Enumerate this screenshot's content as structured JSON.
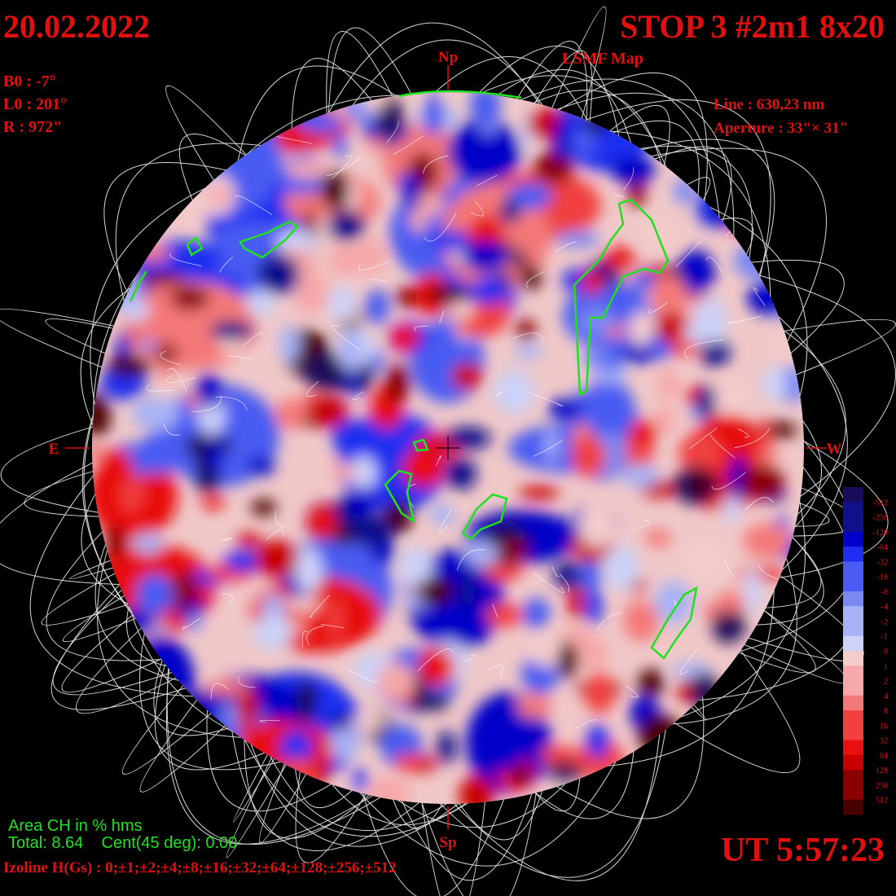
{
  "header": {
    "date": "20.02.2022",
    "title": "STOP 3 #2m1 8x20",
    "subtitle": "LSMF  Map"
  },
  "params": [
    "B0 : -7°",
    "L0 : 201°",
    "R  : 972\""
  ],
  "instrument": [
    "Line :  630,23 nm",
    "Aperture : 33\"× 31\""
  ],
  "directions": {
    "north": "Np",
    "south": "Sp",
    "east": "E",
    "west": "W"
  },
  "colorbar": {
    "labels": [
      "-512",
      "-256",
      "-128",
      "-64",
      "-32",
      "-16",
      "-8",
      "-4",
      "-2",
      "-1",
      "0",
      "1",
      "2",
      "4",
      "8",
      "16",
      "32",
      "64",
      "128",
      "256",
      "512"
    ]
  },
  "footer": {
    "area_title": "Area CH in % hms",
    "area_values": "Total: 8.64    Cent(45 deg): 0.00",
    "isolines": "Izoline H(Gs) : 0;±1;±2;±4;±8;±16;±32;±64;±128;±256;±512",
    "time": "UT 5:57:23"
  }
}
